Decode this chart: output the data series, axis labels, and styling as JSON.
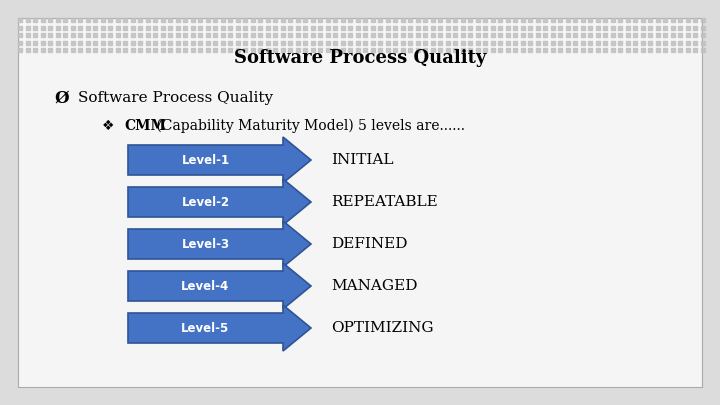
{
  "title": "Software Process Quality",
  "bullet1": "Software Process Quality",
  "cmm_bold": "CMM",
  "cmm_rest": " (Capability Maturity Model) 5 levels are......",
  "levels": [
    "Level-1",
    "Level-2",
    "Level-3",
    "Level-4",
    "Level-5"
  ],
  "descriptions": [
    "INITIAL",
    "REPEATABLE",
    "DEFINED",
    "MANAGED",
    "OPTIMIZING"
  ],
  "arrow_color": "#4472C4",
  "arrow_edge_color": "#2F5496",
  "bg_color": "#DCDCDC",
  "inner_bg": "#F5F5F5",
  "dot_color": "#C0C0C0",
  "title_color": "#000000",
  "desc_color": "#000000",
  "arrow_text_color": "#FFFFFF"
}
